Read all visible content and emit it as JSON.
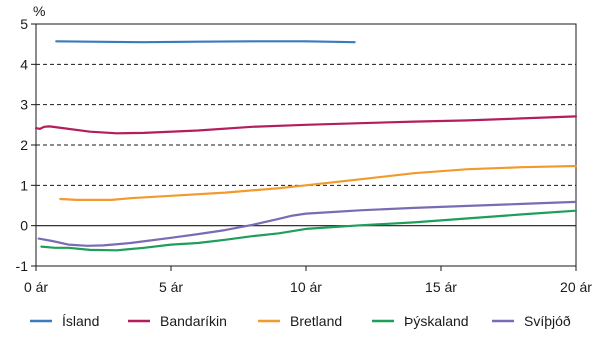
{
  "chart_data": {
    "type": "line",
    "title": "",
    "xlabel": "",
    "ylabel": "%",
    "xlim": [
      0,
      20
    ],
    "ylim": [
      -1,
      5
    ],
    "x_ticks": [
      0,
      5,
      10,
      15,
      20
    ],
    "x_tick_labels": [
      "0 ár",
      "5 ár",
      "10 ár",
      "15 ár",
      "20 ár"
    ],
    "y_ticks": [
      -1,
      0,
      1,
      2,
      3,
      4,
      5
    ],
    "y_tick_labels": [
      "-1",
      "0",
      "1",
      "2",
      "3",
      "4",
      "5"
    ],
    "grid": "horizontal dashed",
    "legend_position": "bottom",
    "series": [
      {
        "name": "Ísland",
        "color": "#3a7bbf",
        "points": [
          [
            0.75,
            4.57
          ],
          [
            2,
            4.56
          ],
          [
            4,
            4.55
          ],
          [
            6,
            4.56
          ],
          [
            8,
            4.57
          ],
          [
            10,
            4.57
          ],
          [
            11.8,
            4.55
          ]
        ]
      },
      {
        "name": "Bandaríkin",
        "color": "#b21f5c",
        "points": [
          [
            0,
            2.42
          ],
          [
            0.15,
            2.4
          ],
          [
            0.3,
            2.45
          ],
          [
            0.5,
            2.46
          ],
          [
            1,
            2.42
          ],
          [
            2,
            2.33
          ],
          [
            3,
            2.29
          ],
          [
            4,
            2.3
          ],
          [
            6,
            2.36
          ],
          [
            8,
            2.45
          ],
          [
            10,
            2.5
          ],
          [
            12,
            2.54
          ],
          [
            14,
            2.58
          ],
          [
            16,
            2.61
          ],
          [
            18,
            2.66
          ],
          [
            20,
            2.71
          ]
        ]
      },
      {
        "name": "Bretland",
        "color": "#f29a2e",
        "points": [
          [
            0.9,
            0.66
          ],
          [
            1.5,
            0.64
          ],
          [
            2,
            0.64
          ],
          [
            2.8,
            0.64
          ],
          [
            3.5,
            0.68
          ],
          [
            5,
            0.74
          ],
          [
            7,
            0.82
          ],
          [
            9,
            0.93
          ],
          [
            10,
            1.0
          ],
          [
            12,
            1.15
          ],
          [
            14,
            1.3
          ],
          [
            16,
            1.4
          ],
          [
            18,
            1.45
          ],
          [
            20,
            1.48
          ]
        ]
      },
      {
        "name": "Þýskaland",
        "color": "#1e9e5a",
        "points": [
          [
            0.2,
            -0.52
          ],
          [
            0.7,
            -0.55
          ],
          [
            1.2,
            -0.55
          ],
          [
            2,
            -0.6
          ],
          [
            3,
            -0.61
          ],
          [
            4,
            -0.55
          ],
          [
            5,
            -0.47
          ],
          [
            6,
            -0.43
          ],
          [
            7,
            -0.35
          ],
          [
            8,
            -0.26
          ],
          [
            9,
            -0.19
          ],
          [
            10,
            -0.08
          ],
          [
            12,
            0.01
          ],
          [
            14,
            0.08
          ],
          [
            16,
            0.18
          ],
          [
            18,
            0.28
          ],
          [
            20,
            0.37
          ]
        ]
      },
      {
        "name": "Svíþjóð",
        "color": "#7b6bb4",
        "points": [
          [
            0.1,
            -0.32
          ],
          [
            0.6,
            -0.38
          ],
          [
            1.2,
            -0.47
          ],
          [
            1.9,
            -0.5
          ],
          [
            2.5,
            -0.49
          ],
          [
            3.5,
            -0.43
          ],
          [
            5,
            -0.3
          ],
          [
            6,
            -0.21
          ],
          [
            7,
            -0.11
          ],
          [
            8,
            0.02
          ],
          [
            9,
            0.17
          ],
          [
            9.5,
            0.25
          ],
          [
            10,
            0.3
          ],
          [
            11,
            0.34
          ],
          [
            12,
            0.38
          ],
          [
            14,
            0.44
          ],
          [
            16,
            0.49
          ],
          [
            18,
            0.54
          ],
          [
            20,
            0.59
          ]
        ]
      }
    ]
  }
}
